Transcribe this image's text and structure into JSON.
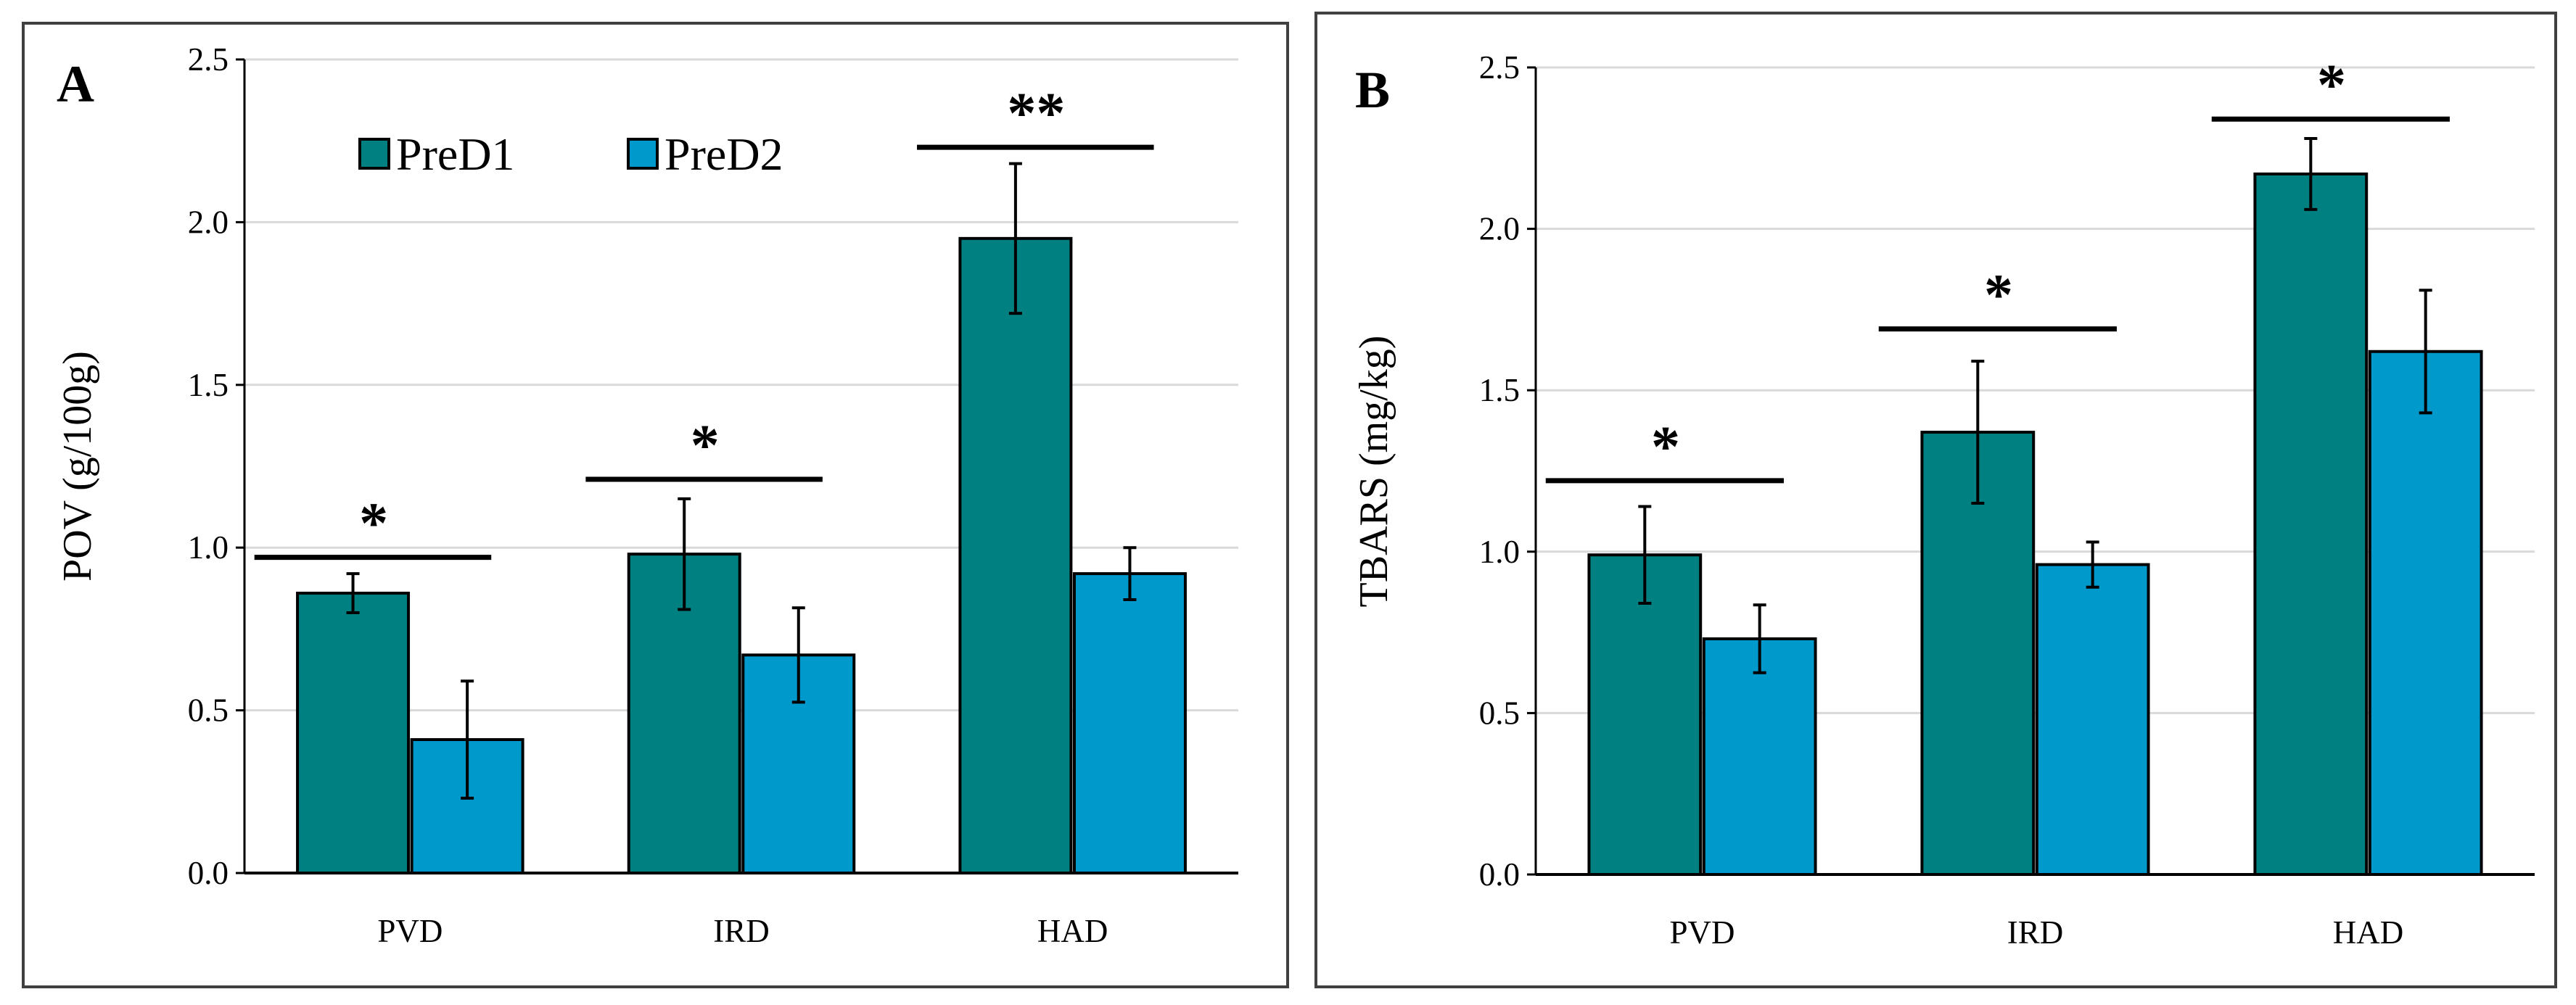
{
  "colors": {
    "PreD1": "#008080",
    "PreD2": "#0099CC",
    "grid": "#D9D9D9",
    "axis": "#000000"
  },
  "chart_data": [
    {
      "type": "bar",
      "panel_label": "A",
      "ylabel": "POV (g/100g)",
      "xlabel": "",
      "ylim": [
        0,
        2.5
      ],
      "yticks": [
        "0.0",
        "0.5",
        "1.0",
        "1.5",
        "2.0",
        "2.5"
      ],
      "grid": true,
      "legend": {
        "placement": "top-left",
        "entries": [
          "PreD1",
          "PreD2"
        ]
      },
      "categories": [
        "PVD",
        "IRD",
        "HAD"
      ],
      "series": [
        {
          "name": "PreD1",
          "values": [
            0.86,
            0.98,
            1.95
          ],
          "errors": [
            0.06,
            0.17,
            0.23
          ]
        },
        {
          "name": "PreD2",
          "values": [
            0.41,
            0.67,
            0.92
          ],
          "errors": [
            0.18,
            0.145,
            0.08
          ]
        }
      ],
      "significance": [
        {
          "category": "PVD",
          "label": "*",
          "level": 0.97
        },
        {
          "category": "IRD",
          "label": "*",
          "level": 1.21
        },
        {
          "category": "HAD",
          "label": "**",
          "level": 2.23
        }
      ]
    },
    {
      "type": "bar",
      "panel_label": "B",
      "ylabel": "TBARS (mg/kg)",
      "xlabel": "",
      "ylim": [
        0,
        2.5
      ],
      "yticks": [
        "0.0",
        "0.5",
        "1.0",
        "1.5",
        "2.0",
        "2.5"
      ],
      "grid": true,
      "legend": null,
      "categories": [
        "PVD",
        "IRD",
        "HAD"
      ],
      "series": [
        {
          "name": "PreD1",
          "values": [
            0.99,
            1.37,
            2.17
          ],
          "errors": [
            0.15,
            0.22,
            0.11
          ]
        },
        {
          "name": "PreD2",
          "values": [
            0.73,
            0.96,
            1.62
          ],
          "errors": [
            0.105,
            0.07,
            0.19
          ]
        }
      ],
      "significance": [
        {
          "category": "PVD",
          "label": "*",
          "level": 1.22
        },
        {
          "category": "IRD",
          "label": "*",
          "level": 1.69
        },
        {
          "category": "HAD",
          "label": "*",
          "level": 2.34
        }
      ]
    }
  ]
}
